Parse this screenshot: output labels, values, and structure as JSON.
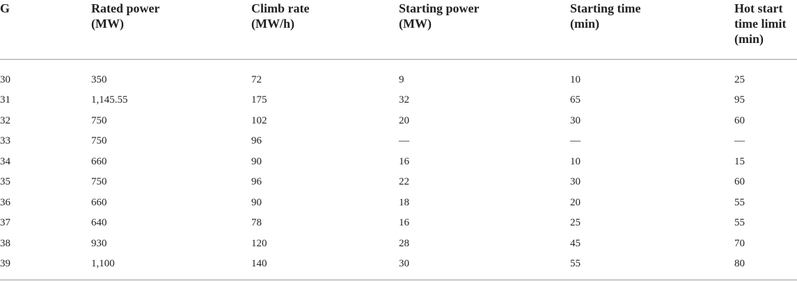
{
  "table": {
    "headers": [
      [
        "G"
      ],
      [
        "Rated power",
        "(MW)"
      ],
      [
        "Climb rate",
        "(MW/h)"
      ],
      [
        "Starting power",
        "(MW)"
      ],
      [
        "Starting time",
        "(min)"
      ],
      [
        "Hot start",
        "time limit",
        "(min)"
      ]
    ],
    "rows": [
      [
        "30",
        "350",
        "72",
        "9",
        "10",
        "25"
      ],
      [
        "31",
        "1,145.55",
        "175",
        "32",
        "65",
        "95"
      ],
      [
        "32",
        "750",
        "102",
        "20",
        "30",
        "60"
      ],
      [
        "33",
        "750",
        "96",
        "—",
        "—",
        "—"
      ],
      [
        "34",
        "660",
        "90",
        "16",
        "10",
        "15"
      ],
      [
        "35",
        "750",
        "96",
        "22",
        "30",
        "60"
      ],
      [
        "36",
        "660",
        "90",
        "18",
        "20",
        "55"
      ],
      [
        "37",
        "640",
        "78",
        "16",
        "25",
        "55"
      ],
      [
        "38",
        "930",
        "120",
        "28",
        "45",
        "70"
      ],
      [
        "39",
        "1,100",
        "140",
        "30",
        "55",
        "80"
      ]
    ]
  }
}
